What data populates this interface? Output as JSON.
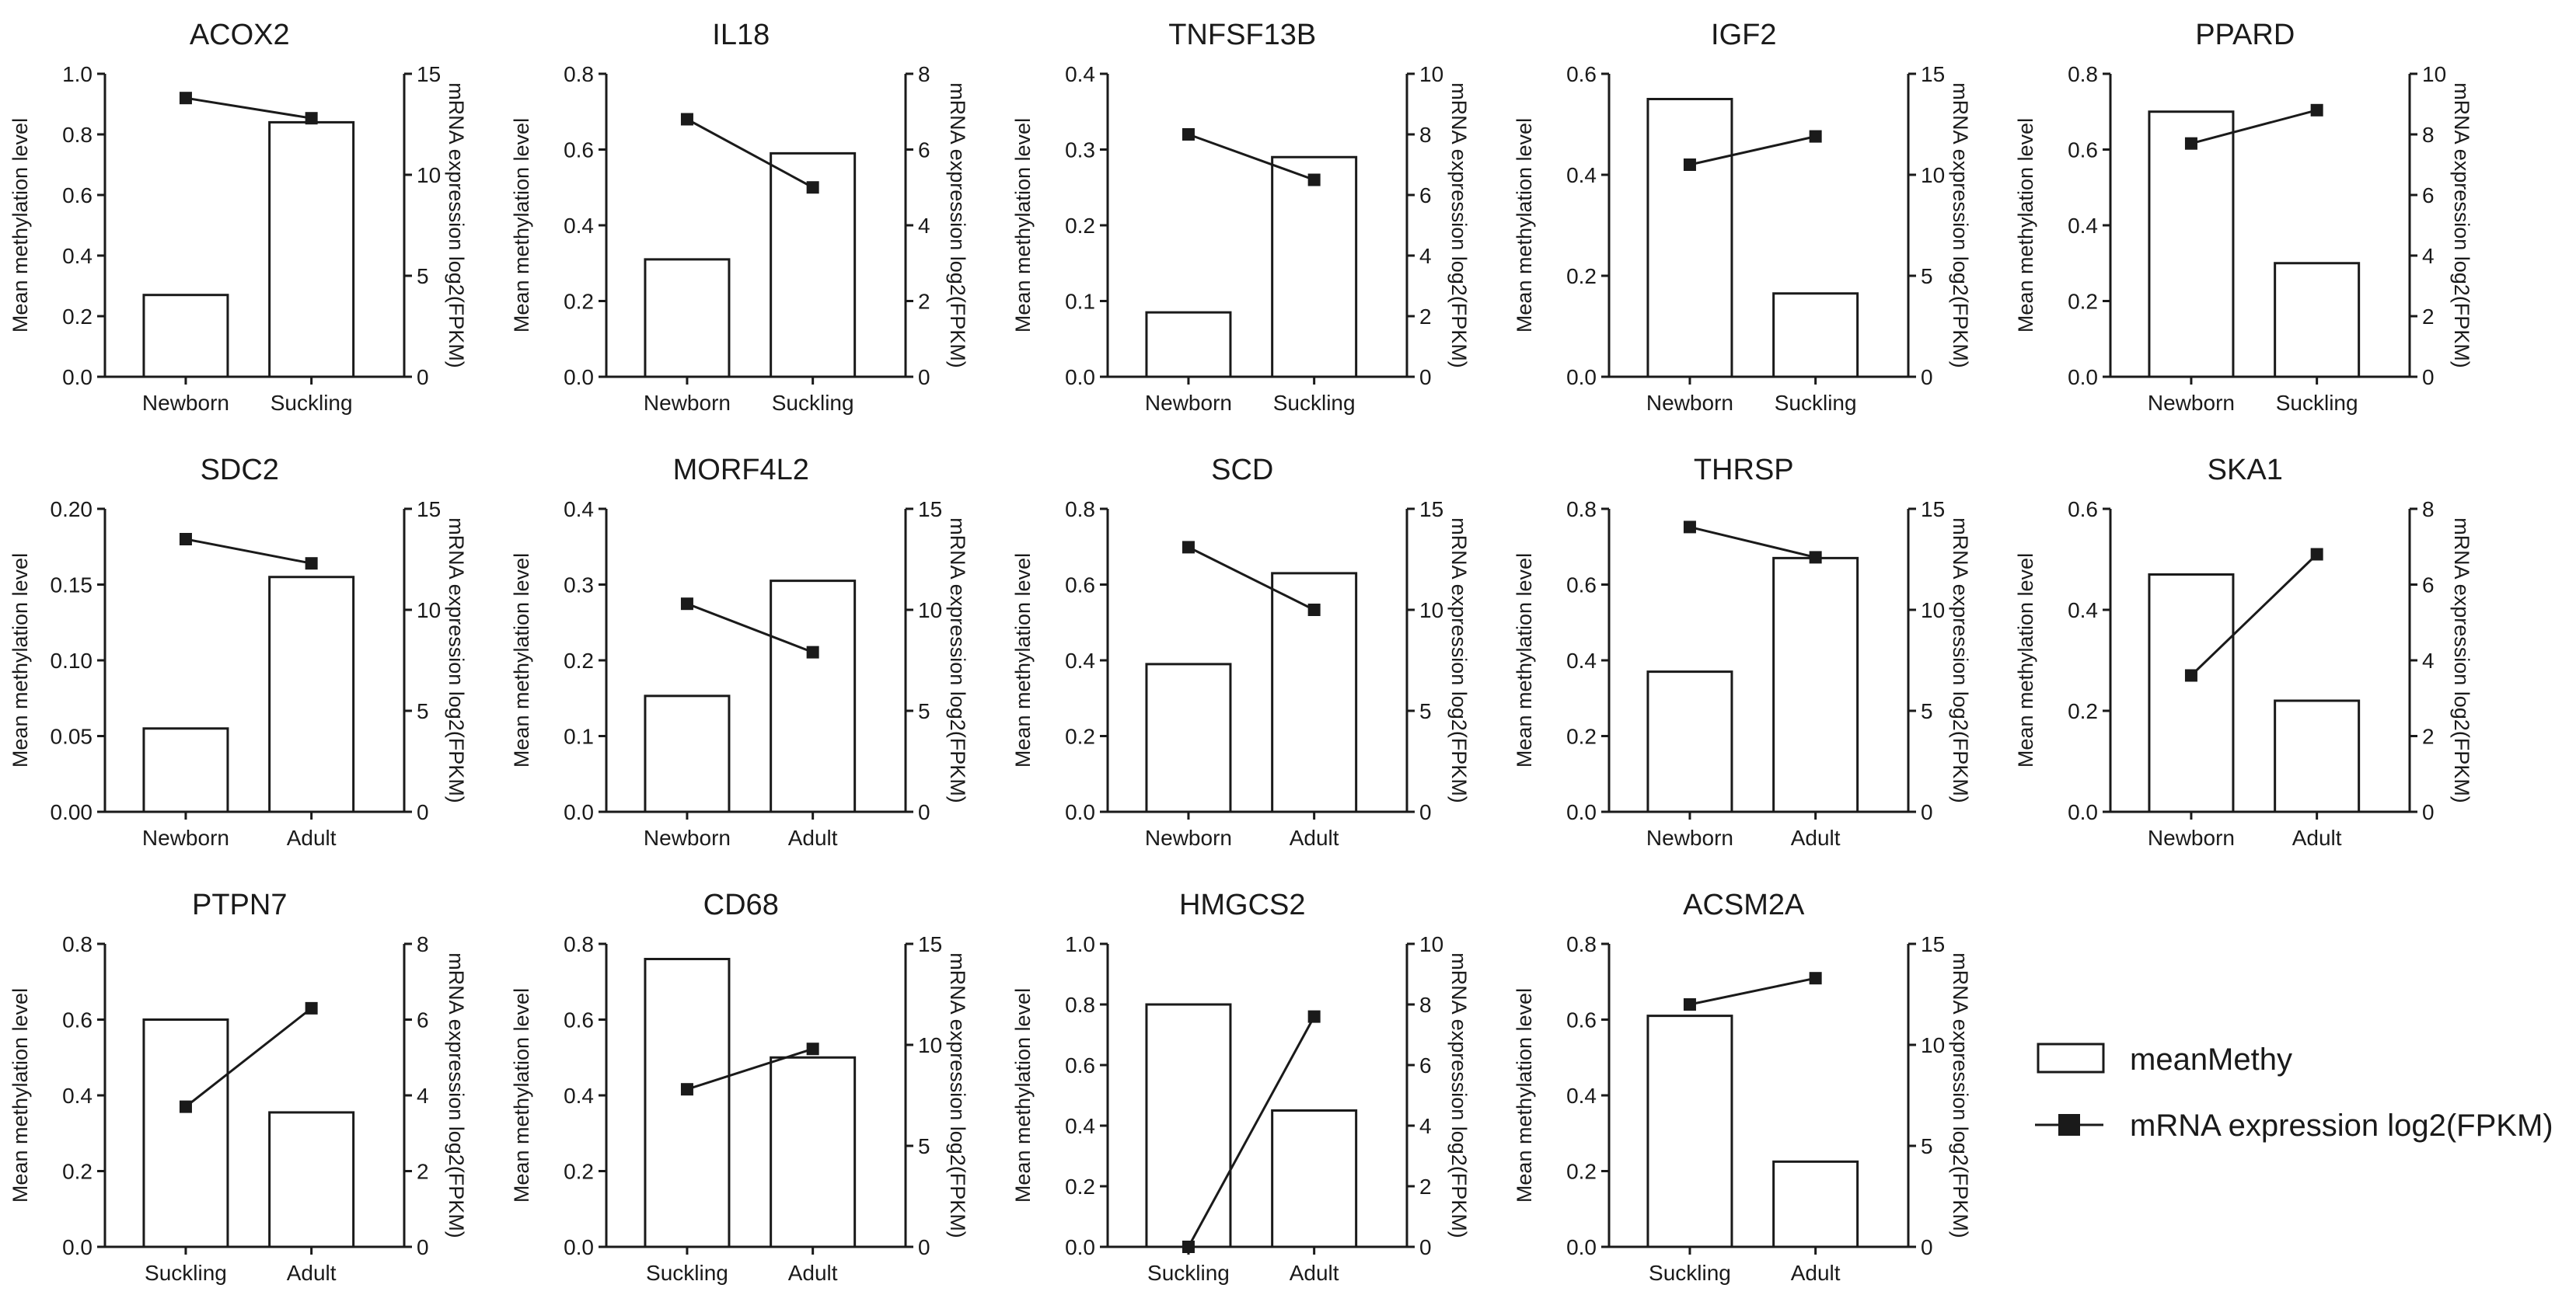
{
  "chart_data": [
    {
      "type": "bar+line",
      "title": "ACOX2",
      "categories": [
        "Newborn",
        "Suckling"
      ],
      "bar_values": [
        0.27,
        0.84
      ],
      "line_values": [
        13.8,
        12.8
      ],
      "left_ticks": [
        "0.0",
        "0.2",
        "0.4",
        "0.6",
        "0.8",
        "1.0"
      ],
      "left_lim": [
        0,
        1.0
      ],
      "right_ticks": [
        "0",
        "5",
        "10",
        "15"
      ],
      "right_lim": [
        0,
        15
      ],
      "ylabel_left": "Mean methylation level",
      "ylabel_right": "mRNA expression log2(FPKM)"
    },
    {
      "type": "bar+line",
      "title": "IL18",
      "categories": [
        "Newborn",
        "Suckling"
      ],
      "bar_values": [
        0.31,
        0.59
      ],
      "line_values": [
        6.8,
        5.0
      ],
      "left_ticks": [
        "0.0",
        "0.2",
        "0.4",
        "0.6",
        "0.8"
      ],
      "left_lim": [
        0,
        0.8
      ],
      "right_ticks": [
        "0",
        "2",
        "4",
        "6",
        "8"
      ],
      "right_lim": [
        0,
        8
      ],
      "ylabel_left": "Mean methylation level",
      "ylabel_right": "mRNA expression log2(FPKM)"
    },
    {
      "type": "bar+line",
      "title": "TNFSF13B",
      "categories": [
        "Newborn",
        "Suckling"
      ],
      "bar_values": [
        0.085,
        0.29
      ],
      "line_values": [
        8.0,
        6.5
      ],
      "left_ticks": [
        "0.0",
        "0.1",
        "0.2",
        "0.3",
        "0.4"
      ],
      "left_lim": [
        0,
        0.4
      ],
      "right_ticks": [
        "0",
        "2",
        "4",
        "6",
        "8",
        "10"
      ],
      "right_lim": [
        0,
        10
      ],
      "ylabel_left": "Mean methylation level",
      "ylabel_right": "mRNA expression log2(FPKM)"
    },
    {
      "type": "bar+line",
      "title": "IGF2",
      "categories": [
        "Newborn",
        "Suckling"
      ],
      "bar_values": [
        0.55,
        0.165
      ],
      "line_values": [
        10.5,
        11.9
      ],
      "left_ticks": [
        "0.0",
        "0.2",
        "0.4",
        "0.6"
      ],
      "left_lim": [
        0,
        0.6
      ],
      "right_ticks": [
        "0",
        "5",
        "10",
        "15"
      ],
      "right_lim": [
        0,
        15
      ],
      "ylabel_left": "Mean methylation level",
      "ylabel_right": "mRNA expression log2(FPKM)"
    },
    {
      "type": "bar+line",
      "title": "PPARD",
      "categories": [
        "Newborn",
        "Suckling"
      ],
      "bar_values": [
        0.7,
        0.3
      ],
      "line_values": [
        7.7,
        8.8
      ],
      "left_ticks": [
        "0.0",
        "0.2",
        "0.4",
        "0.6",
        "0.8"
      ],
      "left_lim": [
        0,
        0.8
      ],
      "right_ticks": [
        "0",
        "2",
        "4",
        "6",
        "8",
        "10"
      ],
      "right_lim": [
        0,
        10
      ],
      "ylabel_left": "Mean methylation level",
      "ylabel_right": "mRNA expression log2(FPKM)"
    },
    {
      "type": "bar+line",
      "title": "SDC2",
      "categories": [
        "Newborn",
        "Adult"
      ],
      "bar_values": [
        0.055,
        0.155
      ],
      "line_values": [
        13.5,
        12.3
      ],
      "left_ticks": [
        "0.00",
        "0.05",
        "0.10",
        "0.15",
        "0.20"
      ],
      "left_lim": [
        0,
        0.2
      ],
      "right_ticks": [
        "0",
        "5",
        "10",
        "15"
      ],
      "right_lim": [
        0,
        15
      ],
      "ylabel_left": "Mean methylation level",
      "ylabel_right": "mRNA expression log2(FPKM)"
    },
    {
      "type": "bar+line",
      "title": "MORF4L2",
      "categories": [
        "Newborn",
        "Adult"
      ],
      "bar_values": [
        0.153,
        0.305
      ],
      "line_values": [
        10.3,
        7.9
      ],
      "left_ticks": [
        "0.0",
        "0.1",
        "0.2",
        "0.3",
        "0.4"
      ],
      "left_lim": [
        0,
        0.4
      ],
      "right_ticks": [
        "0",
        "5",
        "10",
        "15"
      ],
      "right_lim": [
        0,
        15
      ],
      "ylabel_left": "Mean methylation level",
      "ylabel_right": "mRNA expression log2(FPKM)"
    },
    {
      "type": "bar+line",
      "title": "SCD",
      "categories": [
        "Newborn",
        "Adult"
      ],
      "bar_values": [
        0.39,
        0.63
      ],
      "line_values": [
        13.1,
        10.0
      ],
      "left_ticks": [
        "0.0",
        "0.2",
        "0.4",
        "0.6",
        "0.8"
      ],
      "left_lim": [
        0,
        0.8
      ],
      "right_ticks": [
        "0",
        "5",
        "10",
        "15"
      ],
      "right_lim": [
        0,
        15
      ],
      "ylabel_left": "Mean methylation level",
      "ylabel_right": "mRNA expression log2(FPKM)"
    },
    {
      "type": "bar+line",
      "title": "THRSP",
      "categories": [
        "Newborn",
        "Adult"
      ],
      "bar_values": [
        0.37,
        0.67
      ],
      "line_values": [
        14.1,
        12.6
      ],
      "left_ticks": [
        "0.0",
        "0.2",
        "0.4",
        "0.6",
        "0.8"
      ],
      "left_lim": [
        0,
        0.8
      ],
      "right_ticks": [
        "0",
        "5",
        "10",
        "15"
      ],
      "right_lim": [
        0,
        15
      ],
      "ylabel_left": "Mean methylation level",
      "ylabel_right": "mRNA expression log2(FPKM)"
    },
    {
      "type": "bar+line",
      "title": "SKA1",
      "categories": [
        "Newborn",
        "Adult"
      ],
      "bar_values": [
        0.47,
        0.22
      ],
      "line_values": [
        3.6,
        6.8
      ],
      "left_ticks": [
        "0.0",
        "0.2",
        "0.4",
        "0.6"
      ],
      "left_lim": [
        0,
        0.6
      ],
      "right_ticks": [
        "0",
        "2",
        "4",
        "6",
        "8"
      ],
      "right_lim": [
        0,
        8
      ],
      "ylabel_left": "Mean methylation level",
      "ylabel_right": "mRNA expression log2(FPKM)"
    },
    {
      "type": "bar+line",
      "title": "PTPN7",
      "categories": [
        "Suckling",
        "Adult"
      ],
      "bar_values": [
        0.6,
        0.355
      ],
      "line_values": [
        3.7,
        6.3
      ],
      "left_ticks": [
        "0.0",
        "0.2",
        "0.4",
        "0.6",
        "0.8"
      ],
      "left_lim": [
        0,
        0.8
      ],
      "right_ticks": [
        "0",
        "2",
        "4",
        "6",
        "8"
      ],
      "right_lim": [
        0,
        8
      ],
      "ylabel_left": "Mean methylation level",
      "ylabel_right": "mRNA expression log2(FPKM)"
    },
    {
      "type": "bar+line",
      "title": "CD68",
      "categories": [
        "Suckling",
        "Adult"
      ],
      "bar_values": [
        0.76,
        0.5
      ],
      "line_values": [
        7.8,
        9.8
      ],
      "left_ticks": [
        "0.0",
        "0.2",
        "0.4",
        "0.6",
        "0.8"
      ],
      "left_lim": [
        0,
        0.8
      ],
      "right_ticks": [
        "0",
        "5",
        "10",
        "15"
      ],
      "right_lim": [
        0,
        15
      ],
      "ylabel_left": "Mean methylation level",
      "ylabel_right": "mRNA expression log2(FPKM)"
    },
    {
      "type": "bar+line",
      "title": "HMGCS2",
      "categories": [
        "Suckling",
        "Adult"
      ],
      "bar_values": [
        0.8,
        0.45
      ],
      "line_values": [
        0.0,
        7.6
      ],
      "left_ticks": [
        "0.0",
        "0.2",
        "0.4",
        "0.6",
        "0.8",
        "1.0"
      ],
      "left_lim": [
        0,
        1.0
      ],
      "right_ticks": [
        "0",
        "2",
        "4",
        "6",
        "8",
        "10"
      ],
      "right_lim": [
        0,
        10
      ],
      "ylabel_left": "Mean methylation level",
      "ylabel_right": "mRNA expression log2(FPKM)"
    },
    {
      "type": "bar+line",
      "title": "ACSM2A",
      "categories": [
        "Suckling",
        "Adult"
      ],
      "bar_values": [
        0.61,
        0.225
      ],
      "line_values": [
        12.0,
        13.3
      ],
      "left_ticks": [
        "0.0",
        "0.2",
        "0.4",
        "0.6",
        "0.8"
      ],
      "left_lim": [
        0,
        0.8
      ],
      "right_ticks": [
        "0",
        "5",
        "10",
        "15"
      ],
      "right_lim": [
        0,
        15
      ],
      "ylabel_left": "Mean methylation level",
      "ylabel_right": "mRNA expression log2(FPKM)"
    }
  ],
  "legend": {
    "bar_label": "meanMethy",
    "line_label": "mRNA expression log2(FPKM)"
  }
}
